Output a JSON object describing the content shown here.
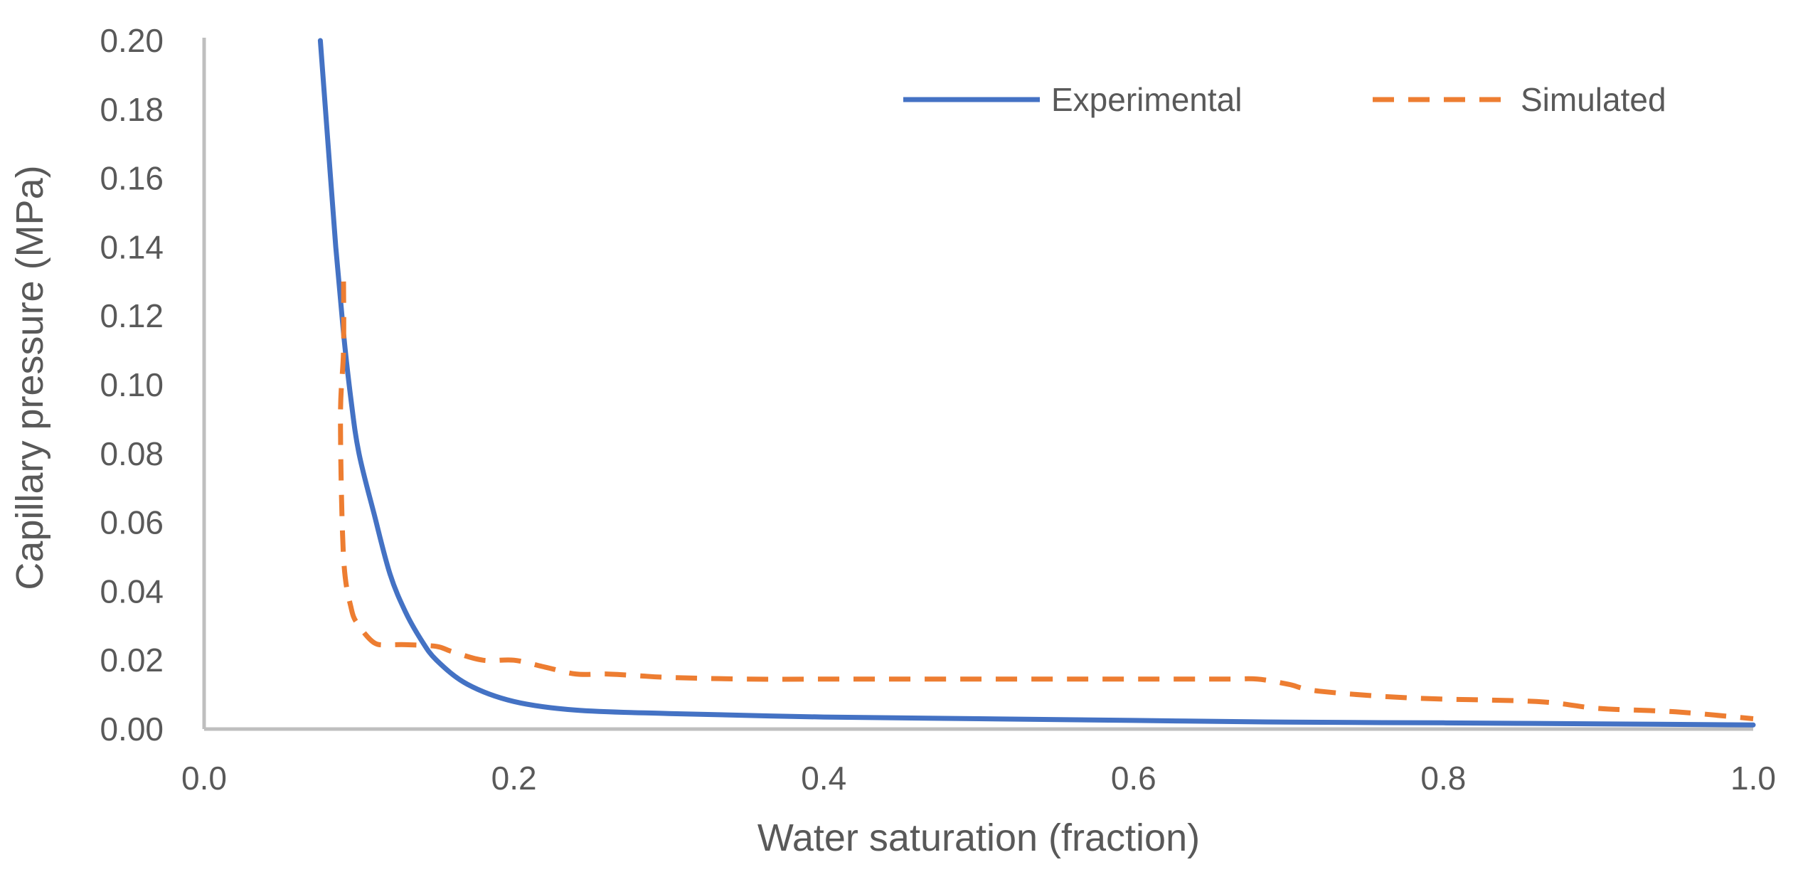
{
  "chart_data": {
    "type": "line",
    "title": "",
    "xlabel": "Water saturation (fraction)",
    "ylabel": "Capillary pressure (MPa)",
    "xlim": [
      0.0,
      1.0
    ],
    "ylim": [
      0.0,
      0.2
    ],
    "x_ticks": [
      0.0,
      0.2,
      0.4,
      0.6,
      0.8,
      1.0
    ],
    "x_tick_labels": [
      "0.0",
      "0.2",
      "0.4",
      "0.6",
      "0.8",
      "1.0"
    ],
    "y_ticks": [
      0.0,
      0.02,
      0.04,
      0.06,
      0.08,
      0.1,
      0.12,
      0.14,
      0.16,
      0.18,
      0.2
    ],
    "y_tick_labels": [
      "0.00",
      "0.02",
      "0.04",
      "0.06",
      "0.08",
      "0.10",
      "0.12",
      "0.14",
      "0.16",
      "0.18",
      "0.20"
    ],
    "grid": false,
    "legend_position": "top-right",
    "series": [
      {
        "name": "Experimental",
        "color": "#4472C4",
        "dash": "solid",
        "x": [
          0.075,
          0.08,
          0.085,
          0.09,
          0.095,
          0.1,
          0.11,
          0.12,
          0.13,
          0.14,
          0.15,
          0.17,
          0.2,
          0.24,
          0.3,
          0.4,
          0.5,
          0.6,
          0.7,
          0.8,
          0.9,
          1.0
        ],
        "y": [
          0.2,
          0.17,
          0.14,
          0.115,
          0.095,
          0.08,
          0.062,
          0.045,
          0.034,
          0.026,
          0.02,
          0.013,
          0.008,
          0.0055,
          0.0045,
          0.0035,
          0.003,
          0.0025,
          0.002,
          0.0018,
          0.0015,
          0.0012
        ]
      },
      {
        "name": "Simulated",
        "color": "#ED7D31",
        "dash": "dashed",
        "x": [
          0.09,
          0.09,
          0.088,
          0.09,
          0.095,
          0.1,
          0.11,
          0.12,
          0.13,
          0.15,
          0.16,
          0.18,
          0.2,
          0.22,
          0.24,
          0.26,
          0.28,
          0.3,
          0.35,
          0.4,
          0.5,
          0.6,
          0.66,
          0.68,
          0.7,
          0.72,
          0.78,
          0.86,
          0.9,
          0.95,
          1.0
        ],
        "y": [
          0.13,
          0.11,
          0.09,
          0.05,
          0.035,
          0.03,
          0.025,
          0.0245,
          0.0245,
          0.024,
          0.0225,
          0.02,
          0.02,
          0.018,
          0.016,
          0.016,
          0.0155,
          0.015,
          0.0145,
          0.0145,
          0.0145,
          0.0145,
          0.0145,
          0.0145,
          0.013,
          0.011,
          0.009,
          0.008,
          0.006,
          0.005,
          0.003
        ]
      }
    ]
  }
}
